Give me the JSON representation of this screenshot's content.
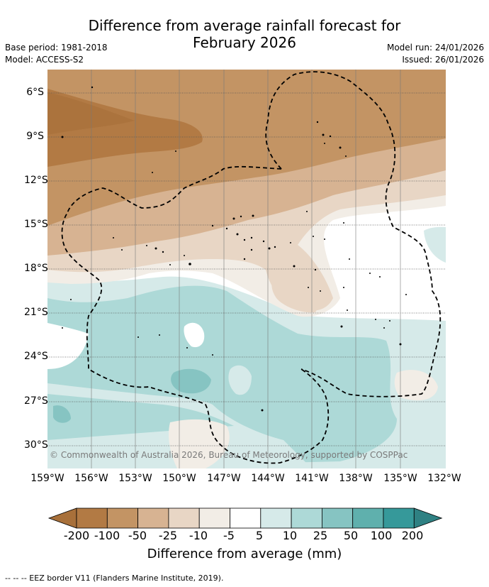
{
  "title_line1": "Difference from average rainfall forecast for",
  "title_line2": "February 2026",
  "meta": {
    "base_period": "Base period: 1981-2018",
    "model": "Model: ACCESS-S2",
    "model_run": "Model run: 24/01/2026",
    "issued": "Issued: 26/01/2026"
  },
  "map": {
    "lat_labels": [
      "6°S",
      "9°S",
      "12°S",
      "15°S",
      "18°S",
      "21°S",
      "24°S",
      "27°S",
      "30°S"
    ],
    "lon_labels": [
      "159°W",
      "156°W",
      "153°W",
      "150°W",
      "147°W",
      "144°W",
      "141°W",
      "138°W",
      "135°W",
      "132°W"
    ],
    "copyright": "© Commonwealth of Australia 2026, Bureau of Meteorology, supported by COSPPac"
  },
  "colorbar": {
    "labels": [
      "-200",
      "-100",
      "-50",
      "-25",
      "-10",
      "-5",
      "5",
      "10",
      "25",
      "50",
      "100",
      "200"
    ],
    "colors": [
      "#a8703a",
      "#b27a44",
      "#c39464",
      "#d7b392",
      "#e8d6c5",
      "#f2ede6",
      "#ffffff",
      "#d6eae9",
      "#add9d7",
      "#86c4c2",
      "#5fb0ad",
      "#36999a",
      "#2f8183"
    ],
    "title": "Difference from average (mm)"
  },
  "footnote": "--  --  -- EEZ border V11 (Flanders Marine Institute, 2019)."
}
